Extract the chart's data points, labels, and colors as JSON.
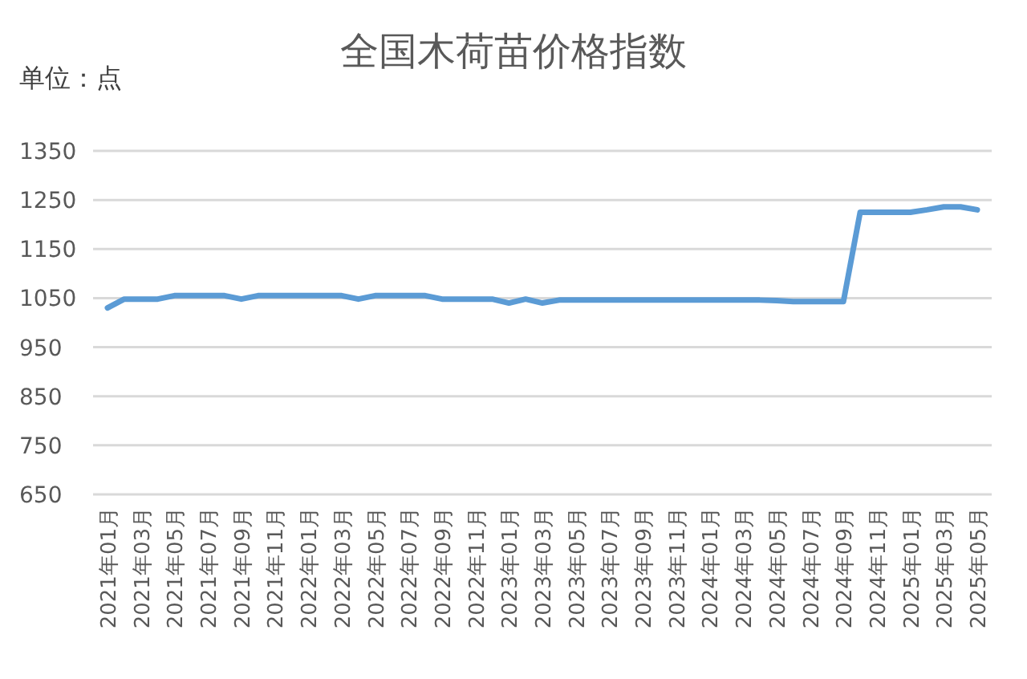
{
  "chart_data": {
    "type": "line",
    "title": "全国木荷苗价格指数",
    "annotations": [
      "单位：点"
    ],
    "categories": [
      "2021年01月",
      null,
      "2021年03月",
      null,
      "2021年05月",
      null,
      "2021年07月",
      null,
      "2021年09月",
      null,
      "2021年11月",
      null,
      "2022年01月",
      null,
      "2022年03月",
      null,
      "2022年05月",
      null,
      "2022年07月",
      null,
      "2022年09月",
      null,
      "2022年11月",
      null,
      "2023年01月",
      null,
      "2023年03月",
      null,
      "2023年05月",
      null,
      "2023年07月",
      null,
      "2023年09月",
      null,
      "2023年11月",
      null,
      "2024年01月",
      null,
      "2024年03月",
      null,
      "2024年05月",
      null,
      "2024年07月",
      null,
      "2024年09月",
      null,
      "2024年11月",
      null,
      "2025年01月",
      null,
      "2025年03月",
      null,
      "2025年05月"
    ],
    "series": [
      {
        "color": "#5b9bd5",
        "values": [
          1030,
          1048,
          1048,
          1048,
          1055,
          1055,
          1055,
          1055,
          1048,
          1055,
          1055,
          1055,
          1055,
          1055,
          1055,
          1048,
          1055,
          1055,
          1055,
          1055,
          1048,
          1048,
          1048,
          1048,
          1040,
          1048,
          1040,
          1046,
          1046,
          1046,
          1046,
          1046,
          1046,
          1046,
          1046,
          1046,
          1046,
          1046,
          1046,
          1046,
          1045,
          1043,
          1043,
          1043,
          1043,
          1225,
          1225,
          1225,
          1225,
          1230,
          1236,
          1236,
          1230
        ]
      }
    ],
    "ylim": [
      650,
      1350
    ],
    "yticks": [
      650,
      750,
      850,
      950,
      1050,
      1150,
      1250,
      1350
    ],
    "grid": "y"
  }
}
